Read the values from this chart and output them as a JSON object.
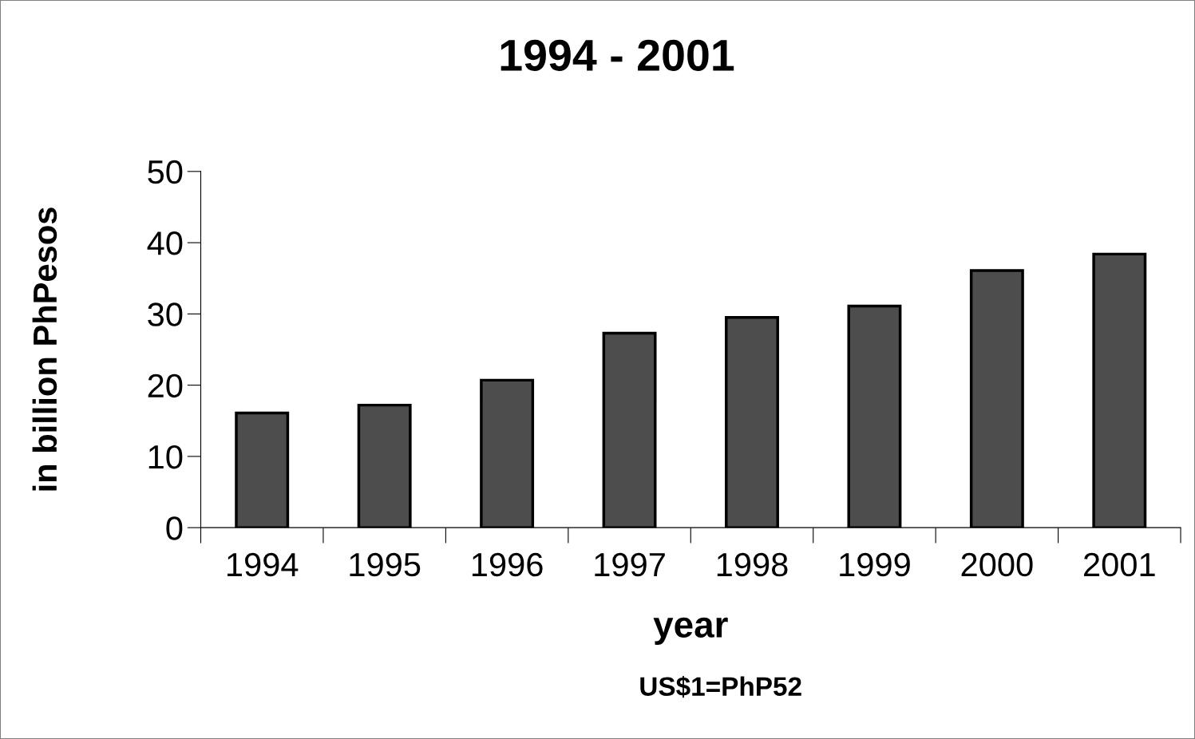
{
  "chart_data": {
    "type": "bar",
    "title": "1994 - 2001",
    "xlabel": "year",
    "ylabel": "in billion PhPesos",
    "annotations": [
      "US$1=PhP52"
    ],
    "categories": [
      "1994",
      "1995",
      "1996",
      "1997",
      "1998",
      "1999",
      "2000",
      "2001"
    ],
    "values": [
      16.1,
      17.2,
      20.7,
      27.3,
      29.5,
      31.1,
      36.1,
      38.4
    ],
    "color": "#4d4d4d",
    "ylim": [
      0,
      50
    ],
    "yticks": [
      0,
      10,
      20,
      30,
      40,
      50
    ],
    "grid": false,
    "legend": false
  }
}
